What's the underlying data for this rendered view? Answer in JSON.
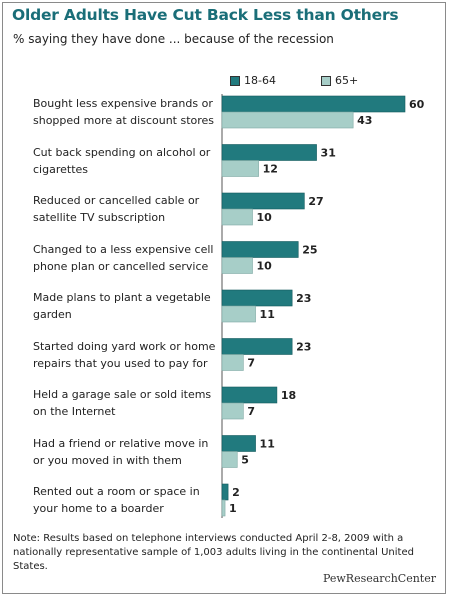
{
  "chart_data": {
    "type": "bar",
    "orientation": "horizontal",
    "title": "Older Adults Have Cut Back Less than Others",
    "subtitle": "% saying they have done ... because of the recession",
    "categories": [
      "Bought less expensive brands or shopped more at discount stores",
      "Cut back spending on alcohol or cigarettes",
      "Reduced or cancelled cable or satellite TV subscription",
      "Changed to a less expensive cell phone plan or cancelled service",
      "Made plans to plant a vegetable garden",
      "Started doing yard work or home repairs that you used to pay for",
      "Held a garage sale or sold items on the Internet",
      "Had a friend or relative move in or you moved in with them",
      "Rented out a room or space in your home to a boarder"
    ],
    "category_lines": [
      [
        "Bought less expensive brands or",
        "shopped more at discount stores"
      ],
      [
        "Cut back spending on alcohol or",
        "cigarettes"
      ],
      [
        "Reduced or cancelled cable or",
        "satellite TV subscription"
      ],
      [
        "Changed to a less expensive cell",
        "phone plan or cancelled service"
      ],
      [
        "Made plans to plant a vegetable",
        "garden"
      ],
      [
        "Started doing yard work or home",
        "repairs that you used to pay for"
      ],
      [
        "Held a garage sale or sold items",
        "on the Internet"
      ],
      [
        "Had a friend or relative move in",
        "or you moved in with them"
      ],
      [
        "Rented out a room or space in",
        "your home to a boarder"
      ]
    ],
    "series": [
      {
        "name": "18-64",
        "color": "#217a7e",
        "values": [
          60,
          31,
          27,
          25,
          23,
          23,
          18,
          11,
          2
        ]
      },
      {
        "name": "65+",
        "color": "#a7cec8",
        "values": [
          43,
          12,
          10,
          10,
          11,
          7,
          7,
          5,
          1
        ]
      }
    ],
    "xlim": [
      0,
      60
    ],
    "legend_position": "top",
    "grid": false
  },
  "note": "Note: Results based on telephone interviews conducted April 2-8, 2009 with a nationally representative sample of 1,003 adults living in the continental United States.",
  "source": "PewResearchCenter"
}
